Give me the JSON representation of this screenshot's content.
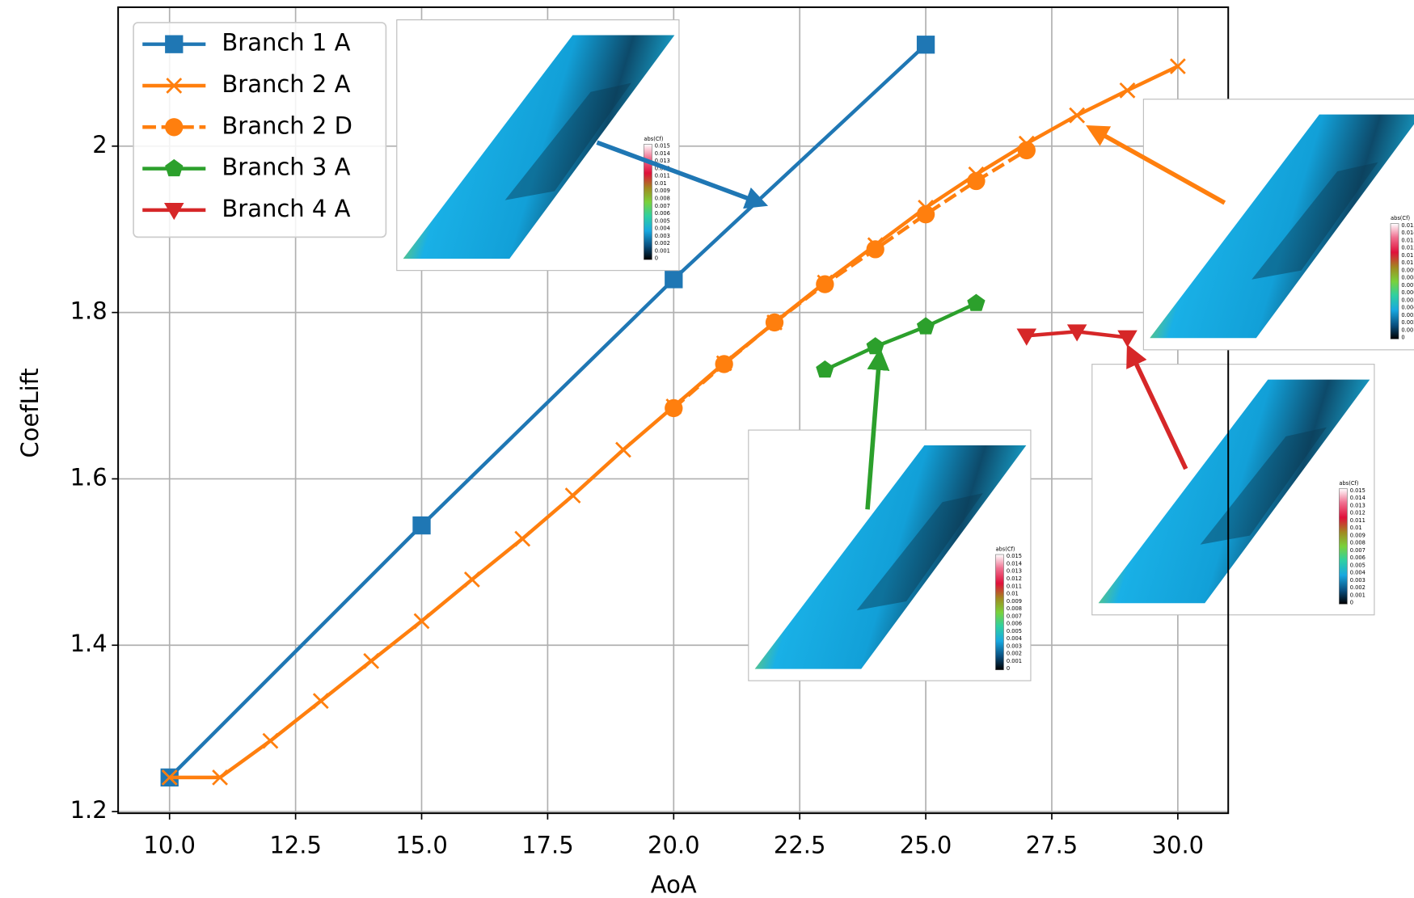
{
  "chart_data": {
    "type": "line",
    "xlabel": "AoA",
    "ylabel": "CoefLift",
    "xlim": [
      8.98,
      31.0
    ],
    "ylim": [
      1.198,
      2.167
    ],
    "xticks": [
      {
        "value": 10,
        "label": "10.0"
      },
      {
        "value": 12.5,
        "label": "12.5"
      },
      {
        "value": 15,
        "label": "15.0"
      },
      {
        "value": 17.5,
        "label": "17.5"
      },
      {
        "value": 20,
        "label": "20.0"
      },
      {
        "value": 22.5,
        "label": "22.5"
      },
      {
        "value": 25,
        "label": "25.0"
      },
      {
        "value": 27.5,
        "label": "27.5"
      },
      {
        "value": 30,
        "label": "30.0"
      }
    ],
    "yticks": [
      1.2,
      1.4,
      1.6,
      1.8,
      2.0
    ],
    "grid": true,
    "legend": "upper left",
    "series": [
      {
        "name": "Branch 1 A",
        "color": "#1f77b4",
        "marker": "square",
        "linestyle": "solid",
        "x": [
          10,
          15,
          20,
          25
        ],
        "values": [
          1.241,
          1.544,
          1.84,
          2.122
        ]
      },
      {
        "name": "Branch 2 A",
        "color": "#ff7f0e",
        "marker": "x",
        "linestyle": "solid",
        "x": [
          10,
          11,
          12,
          13,
          14,
          15,
          16,
          17,
          18,
          19,
          20,
          21,
          22,
          23,
          24,
          25,
          26,
          27,
          28,
          29,
          30
        ],
        "values": [
          1.241,
          1.241,
          1.285,
          1.333,
          1.381,
          1.429,
          1.479,
          1.528,
          1.58,
          1.635,
          1.687,
          1.739,
          1.788,
          1.836,
          1.881,
          1.926,
          1.966,
          2.003,
          2.037,
          2.067,
          2.096
        ]
      },
      {
        "name": "Branch 2 D",
        "color": "#ff7f0e",
        "marker": "circle",
        "linestyle": "dashed",
        "x": [
          20,
          21,
          22,
          23,
          24,
          25,
          26,
          27
        ],
        "values": [
          1.685,
          1.738,
          1.788,
          1.834,
          1.876,
          1.918,
          1.958,
          1.995
        ]
      },
      {
        "name": "Branch 3 A",
        "color": "#2ca02c",
        "marker": "pentagon",
        "linestyle": "solid",
        "x": [
          23,
          24,
          25,
          26
        ],
        "values": [
          1.731,
          1.759,
          1.783,
          1.811
        ]
      },
      {
        "name": "Branch 4 A",
        "color": "#d62728",
        "marker": "triangle-down",
        "linestyle": "solid",
        "x": [
          27,
          28,
          29
        ],
        "values": [
          1.772,
          1.777,
          1.77
        ]
      }
    ],
    "inset_colorbar": {
      "title": "abs(Cf)",
      "labels": [
        "0.015",
        "0.014",
        "0.013",
        "0.012",
        "0.011",
        "0.01",
        "0.009",
        "0.008",
        "0.007",
        "0.006",
        "0.005",
        "0.004",
        "0.003",
        "0.002",
        "0.001",
        "0"
      ]
    }
  }
}
